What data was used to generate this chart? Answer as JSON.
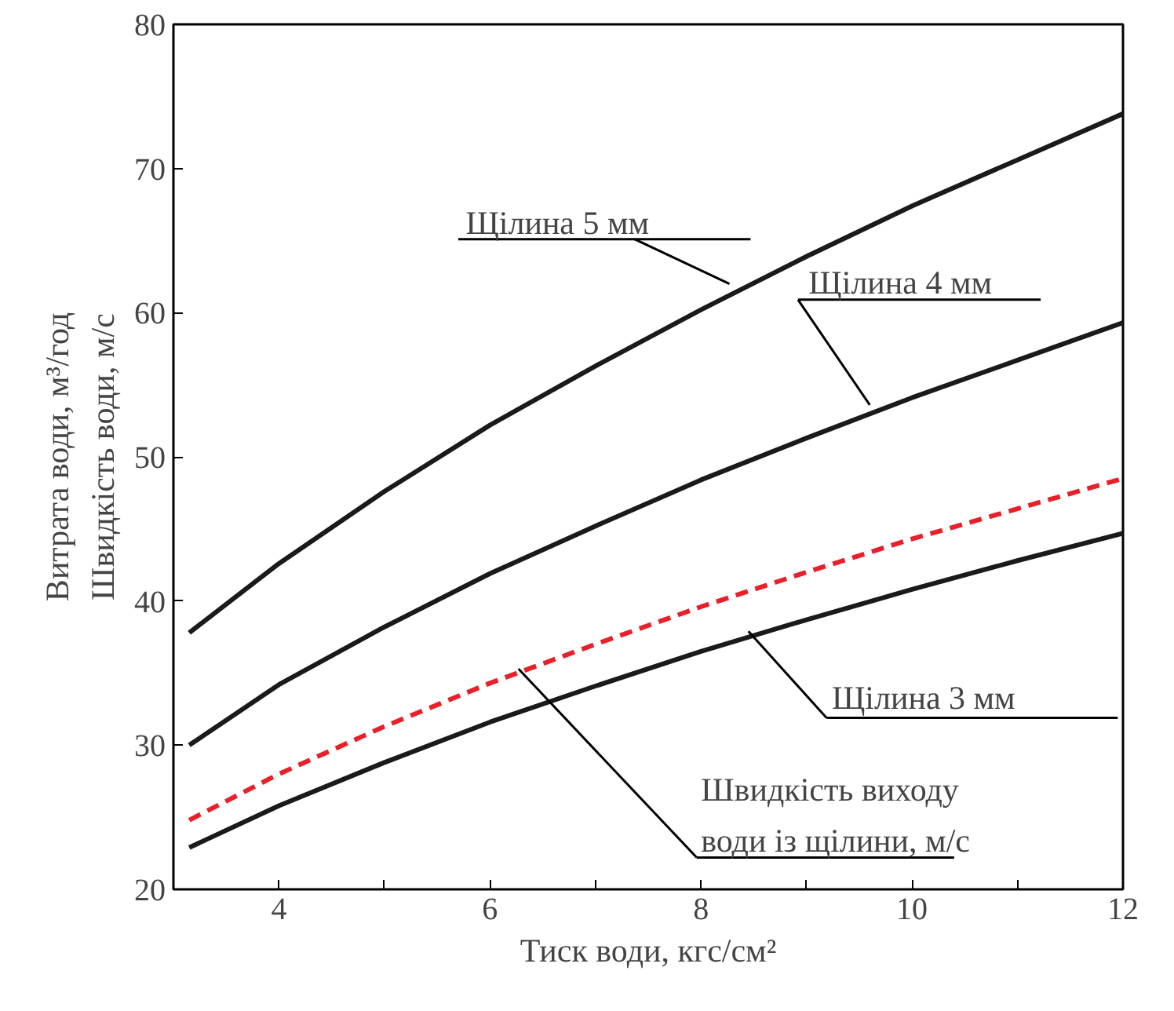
{
  "chart_data": {
    "type": "line",
    "xlabel": "Тиск води, кгс/см²",
    "ylabel": "Витрата води, м³/год\nШвидкість води, м/с",
    "x": [
      3.15,
      4,
      5,
      6,
      7,
      8,
      9,
      10,
      11,
      12
    ],
    "xlim": [
      3,
      12
    ],
    "ylim": [
      20,
      80
    ],
    "xticks": [
      {
        "value": 3,
        "label": null
      },
      4,
      {
        "value": 5,
        "label": null
      },
      6,
      {
        "value": 7,
        "label": null
      },
      8,
      {
        "value": 9,
        "label": null
      },
      10,
      {
        "value": 11,
        "label": null
      },
      12
    ],
    "yticks": [
      20,
      30,
      40,
      50,
      60,
      70,
      80
    ],
    "grid": false,
    "marker": "none",
    "series": [
      {
        "color": "#1a1a1a",
        "line_style": "solid",
        "values": [
          37.8,
          42.6,
          47.6,
          52.2,
          56.3,
          60.2,
          63.9,
          67.4,
          70.6,
          73.8
        ]
      },
      {
        "color": "#1a1a1a",
        "line_style": "solid",
        "values": [
          30.0,
          34.2,
          38.2,
          41.9,
          45.2,
          48.4,
          51.3,
          54.1,
          56.7,
          59.3
        ]
      },
      {
        "color": "#e8202a",
        "line_style": "dashed",
        "values": [
          24.8,
          28.0,
          31.3,
          34.3,
          37.0,
          39.6,
          42.0,
          44.3,
          46.4,
          48.5
        ]
      },
      {
        "color": "#1a1a1a",
        "line_style": "solid",
        "values": [
          22.9,
          25.8,
          28.8,
          31.6,
          34.1,
          36.5,
          38.7,
          40.8,
          42.8,
          44.7
        ]
      }
    ],
    "annotations": [
      {
        "text": "Щілина 5 мм",
        "x": 8.27,
        "y": 62.0
      },
      {
        "text": "Щілина 4 мм",
        "x": 9.6,
        "y": 53.6
      },
      {
        "text": "Щілина 3 мм",
        "x": 8.45,
        "y": 37.9
      },
      {
        "text": "Швидкість виходу\nводи із щілини, м/с",
        "x": 6.27,
        "y": 35.3
      }
    ]
  }
}
